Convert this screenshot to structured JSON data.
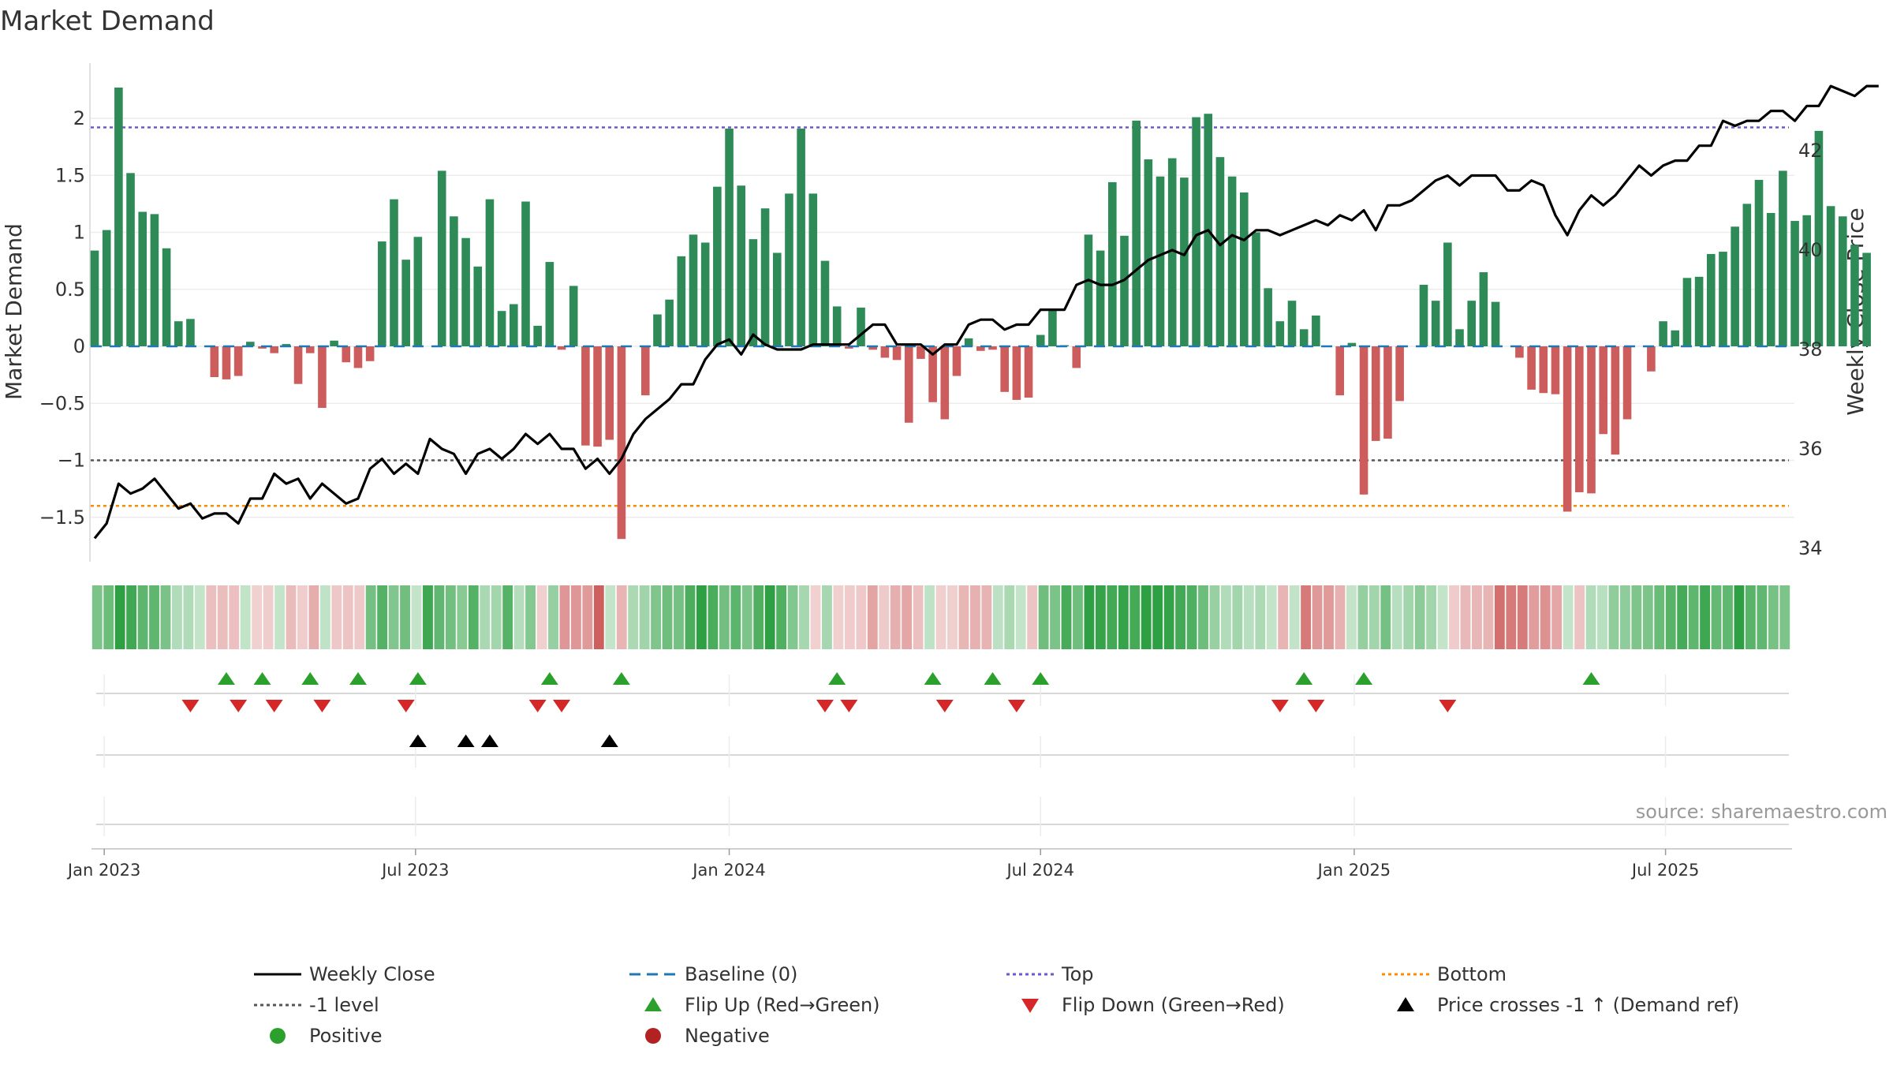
{
  "chart_data": {
    "type": "bar",
    "title": "Market Demand",
    "ylabel": "Market Demand",
    "y2label": "Weekly Close Price",
    "ylim": [
      -1.9,
      2.5
    ],
    "y2lim": [
      33.5,
      44.2
    ],
    "yticks": [
      2,
      1.5,
      1,
      0.5,
      0,
      -0.5,
      -1,
      -1.5
    ],
    "ytick_labels": [
      "2",
      "1.5",
      "1",
      "0.5",
      "0",
      "−0.5",
      "−1",
      "−1.5"
    ],
    "y2ticks": [
      42,
      40,
      38,
      36,
      34
    ],
    "y2tick_labels": [
      "42",
      "40",
      "38",
      "36",
      "34"
    ],
    "x_tick_weeks": [
      0.8,
      26.8,
      53,
      79,
      105.2,
      131.2
    ],
    "xtick_labels": [
      "Jan 2023",
      "Jul 2023",
      "Jan 2024",
      "Jul 2024",
      "Jan 2025",
      "Jul 2025"
    ],
    "reference_lines": {
      "top": 1.92,
      "minus_one": -1.0,
      "bottom": -1.4,
      "baseline": 0
    },
    "demand": [
      0.84,
      1.02,
      2.27,
      1.52,
      1.18,
      1.16,
      0.86,
      0.22,
      0.24,
      0.0,
      -0.27,
      -0.29,
      -0.26,
      0.04,
      -0.02,
      -0.06,
      0.02,
      -0.33,
      -0.06,
      -0.54,
      0.05,
      -0.14,
      -0.19,
      -0.13,
      0.92,
      1.29,
      0.76,
      0.96,
      0.0,
      1.54,
      1.14,
      0.95,
      0.7,
      1.29,
      0.31,
      0.37,
      1.27,
      0.18,
      0.74,
      -0.03,
      0.53,
      -0.87,
      -0.88,
      -0.82,
      -1.69,
      0.0,
      -0.43,
      0.28,
      0.41,
      0.79,
      0.98,
      0.91,
      1.4,
      1.91,
      1.41,
      0.94,
      1.21,
      0.82,
      1.34,
      1.91,
      1.34,
      0.75,
      0.35,
      -0.02,
      0.34,
      -0.03,
      -0.1,
      -0.12,
      -0.67,
      -0.11,
      -0.49,
      -0.64,
      -0.26,
      0.07,
      -0.04,
      -0.03,
      -0.4,
      -0.47,
      -0.45,
      0.1,
      0.32,
      0.01,
      -0.19,
      0.98,
      0.84,
      1.44,
      0.97,
      1.98,
      1.64,
      1.49,
      1.65,
      1.48,
      2.01,
      2.04,
      1.66,
      1.49,
      1.35,
      1.0,
      0.51,
      0.22,
      0.4,
      0.15,
      0.27,
      0.0,
      -0.43,
      0.03,
      -1.3,
      -0.83,
      -0.81,
      -0.48,
      0.0,
      0.54,
      0.4,
      0.91,
      0.15,
      0.4,
      0.65,
      0.39,
      0.0,
      -0.1,
      -0.38,
      -0.41,
      -0.42,
      -1.45,
      -1.28,
      -1.29,
      -0.77,
      -0.95,
      -0.64,
      0.0,
      -0.22,
      0.22,
      0.14,
      0.6,
      0.61,
      0.81,
      0.83,
      1.05,
      1.25,
      1.46,
      1.17,
      1.54,
      1.1,
      1.15,
      1.89,
      1.23,
      1.14,
      0.89,
      0.82
    ],
    "weekly_close": [
      34.2,
      34.5,
      35.3,
      35.1,
      35.2,
      35.4,
      35.1,
      34.8,
      34.9,
      34.6,
      34.7,
      34.7,
      34.5,
      35.0,
      35.0,
      35.5,
      35.3,
      35.4,
      35.0,
      35.3,
      35.1,
      34.9,
      35.0,
      35.6,
      35.8,
      35.5,
      35.7,
      35.5,
      36.2,
      36.0,
      35.9,
      35.5,
      35.9,
      36.0,
      35.8,
      36.0,
      36.3,
      36.1,
      36.3,
      36.0,
      36.0,
      35.6,
      35.8,
      35.5,
      35.8,
      36.3,
      36.6,
      36.8,
      37.0,
      37.3,
      37.3,
      37.8,
      38.1,
      38.2,
      37.9,
      38.3,
      38.1,
      38.0,
      38.0,
      38.0,
      38.1,
      38.1,
      38.1,
      38.1,
      38.3,
      38.5,
      38.5,
      38.1,
      38.1,
      38.1,
      37.9,
      38.1,
      38.1,
      38.5,
      38.6,
      38.6,
      38.4,
      38.5,
      38.5,
      38.8,
      38.8,
      38.8,
      39.3,
      39.4,
      39.3,
      39.3,
      39.4,
      39.6,
      39.8,
      39.9,
      40.0,
      39.9,
      40.3,
      40.4,
      40.1,
      40.3,
      40.2,
      40.4,
      40.4,
      40.3,
      40.4,
      40.5,
      40.6,
      40.5,
      40.7,
      40.6,
      40.8,
      40.4,
      40.9,
      40.9,
      41.0,
      41.2,
      41.4,
      41.5,
      41.3,
      41.5,
      41.5,
      41.5,
      41.2,
      41.2,
      41.4,
      41.3,
      40.7,
      40.3,
      40.8,
      41.1,
      40.9,
      41.1,
      41.4,
      41.7,
      41.5,
      41.7,
      41.8,
      41.8,
      42.1,
      42.1,
      42.6,
      42.5,
      42.6,
      42.6,
      42.8,
      42.8,
      42.6,
      42.9,
      42.9,
      43.3,
      43.2,
      43.1,
      43.3,
      43.3
    ],
    "flip_up_weeks": [
      11.0,
      14.0,
      18.0,
      22.0,
      27.0,
      38.0,
      44.0,
      62.0,
      70.0,
      75.0,
      79.0,
      101.0,
      106.0,
      125.0
    ],
    "flip_down_weeks": [
      8.0,
      12.0,
      15.0,
      19.0,
      26.0,
      37.0,
      39.0,
      61.0,
      63.0,
      71.0,
      77.0,
      99.0,
      102.0,
      113.0
    ],
    "price_cross_weeks": [
      27.0,
      31.0,
      33.0,
      43.0
    ],
    "source_note": "source: sharemaestro.com"
  },
  "colors": {
    "positive_bar": "#2e8b57",
    "negative_bar": "#cd5c5c",
    "close_line": "#000000",
    "baseline": "#1f77b4",
    "top_line": "#6a5acd",
    "minus_one_line": "#555555",
    "bottom_line": "#ff8c00",
    "flip_up": "#2ca02c",
    "flip_down": "#d62728",
    "price_cross": "#000000",
    "positive_dot": "#2ca02c",
    "negative_dot": "#b22222"
  },
  "legend": [
    {
      "label": "Weekly Close",
      "marker": "line-solid-black"
    },
    {
      "label": "Baseline (0)",
      "marker": "line-dashed-blue"
    },
    {
      "label": "Top",
      "marker": "line-dotted-purple"
    },
    {
      "label": "Bottom",
      "marker": "line-dotted-orange"
    },
    {
      "label": "-1 level",
      "marker": "line-dotted-gray"
    },
    {
      "label": "Flip Up (Red→Green)",
      "marker": "triangle-up-green"
    },
    {
      "label": "Flip Down (Green→Red)",
      "marker": "triangle-down-red"
    },
    {
      "label": "Price crosses -1 ↑ (Demand ref)",
      "marker": "triangle-up-black"
    },
    {
      "label": "Positive",
      "marker": "circle-green"
    },
    {
      "label": "Negative",
      "marker": "circle-red"
    }
  ]
}
